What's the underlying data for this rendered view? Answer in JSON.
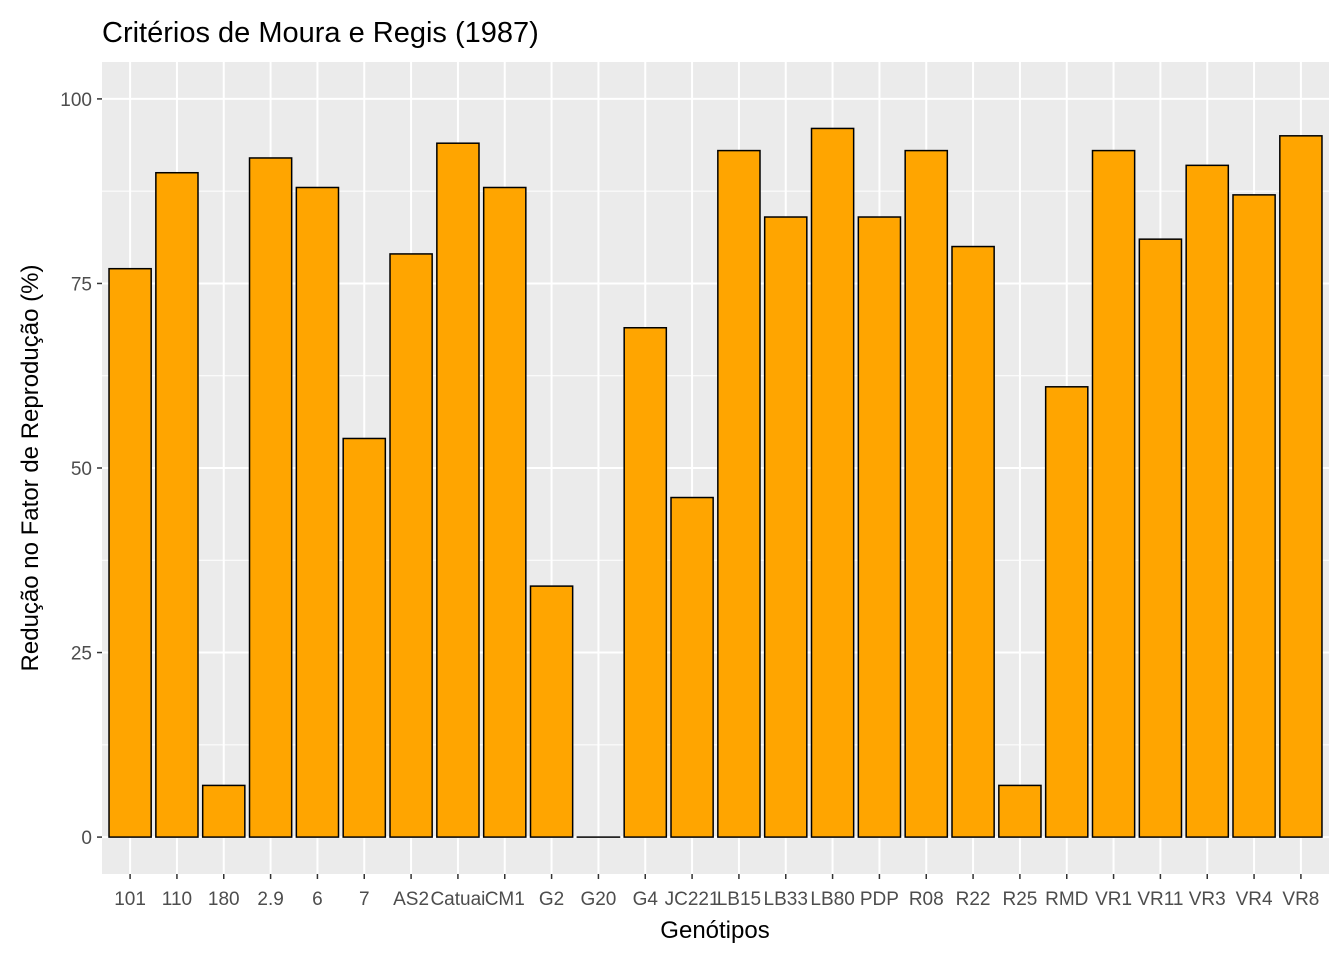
{
  "chart_data": {
    "type": "bar",
    "title": "Critérios de Moura e Regis (1987)",
    "xlabel": "Genótipos",
    "ylabel": "Redução no Fator de Reprodução (%)",
    "categories": [
      "101",
      "110",
      "180",
      "2.9",
      "6",
      "7",
      "AS2",
      "Catuai",
      "CM1",
      "G2",
      "G20",
      "G4",
      "JC221",
      "LB15",
      "LB33",
      "LB80",
      "PDP",
      "R08",
      "R22",
      "R25",
      "RMD",
      "VR1",
      "VR11",
      "VR3",
      "VR4",
      "VR8"
    ],
    "values": [
      77,
      90,
      7,
      92,
      88,
      54,
      79,
      94,
      88,
      34,
      0,
      69,
      46,
      93,
      84,
      96,
      84,
      93,
      80,
      7,
      61,
      93,
      81,
      91,
      87,
      95
    ],
    "ylim": [
      -5,
      105
    ],
    "yticks": [
      0,
      25,
      50,
      75,
      100
    ],
    "grid": true,
    "legend": "none",
    "colors": {
      "bar_fill": "#FFA500",
      "bar_stroke": "#000000",
      "panel_bg": "#EBEBEB",
      "grid": "#FFFFFF",
      "tick_text": "#4D4D4D"
    }
  }
}
